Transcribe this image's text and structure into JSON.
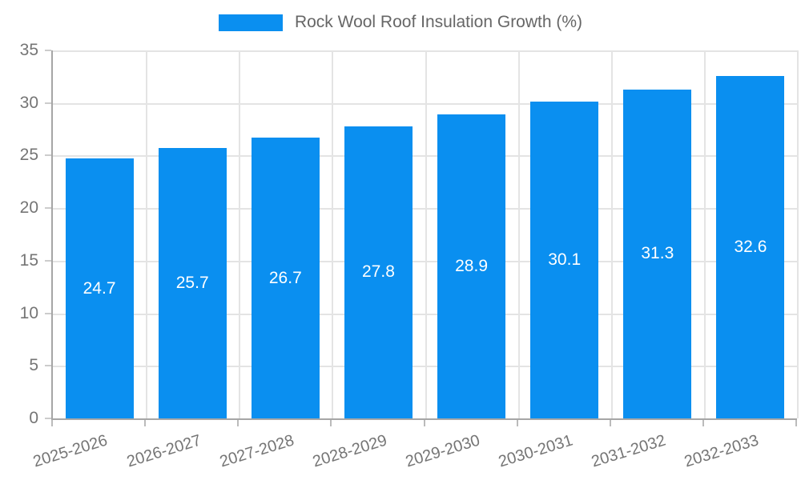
{
  "chart_data": {
    "type": "bar",
    "title": "Rock Wool Roof Insulation Growth (%)",
    "categories": [
      "2025-2026",
      "2026-2027",
      "2027-2028",
      "2028-2029",
      "2029-2030",
      "2030-2031",
      "2031-2032",
      "2032-2033"
    ],
    "values": [
      24.7,
      25.7,
      26.7,
      27.8,
      28.9,
      30.1,
      31.3,
      32.6
    ],
    "value_labels": [
      "24.7",
      "25.7",
      "26.7",
      "27.8",
      "28.9",
      "30.1",
      "31.3",
      "32.6"
    ],
    "xlabel": "",
    "ylabel": "",
    "ylim": [
      0,
      35
    ],
    "yticks": [
      0,
      5,
      10,
      15,
      20,
      25,
      30,
      35
    ],
    "grid": true,
    "legend_position": "top-center",
    "colors": {
      "bar": "#0a8ff0",
      "bar_value_text": "#ffffff",
      "gridline": "#e4e4e4",
      "axis_line": "#a6a6a6",
      "tick_text": "#757575",
      "legend_text": "#666666",
      "background": "#ffffff"
    }
  }
}
